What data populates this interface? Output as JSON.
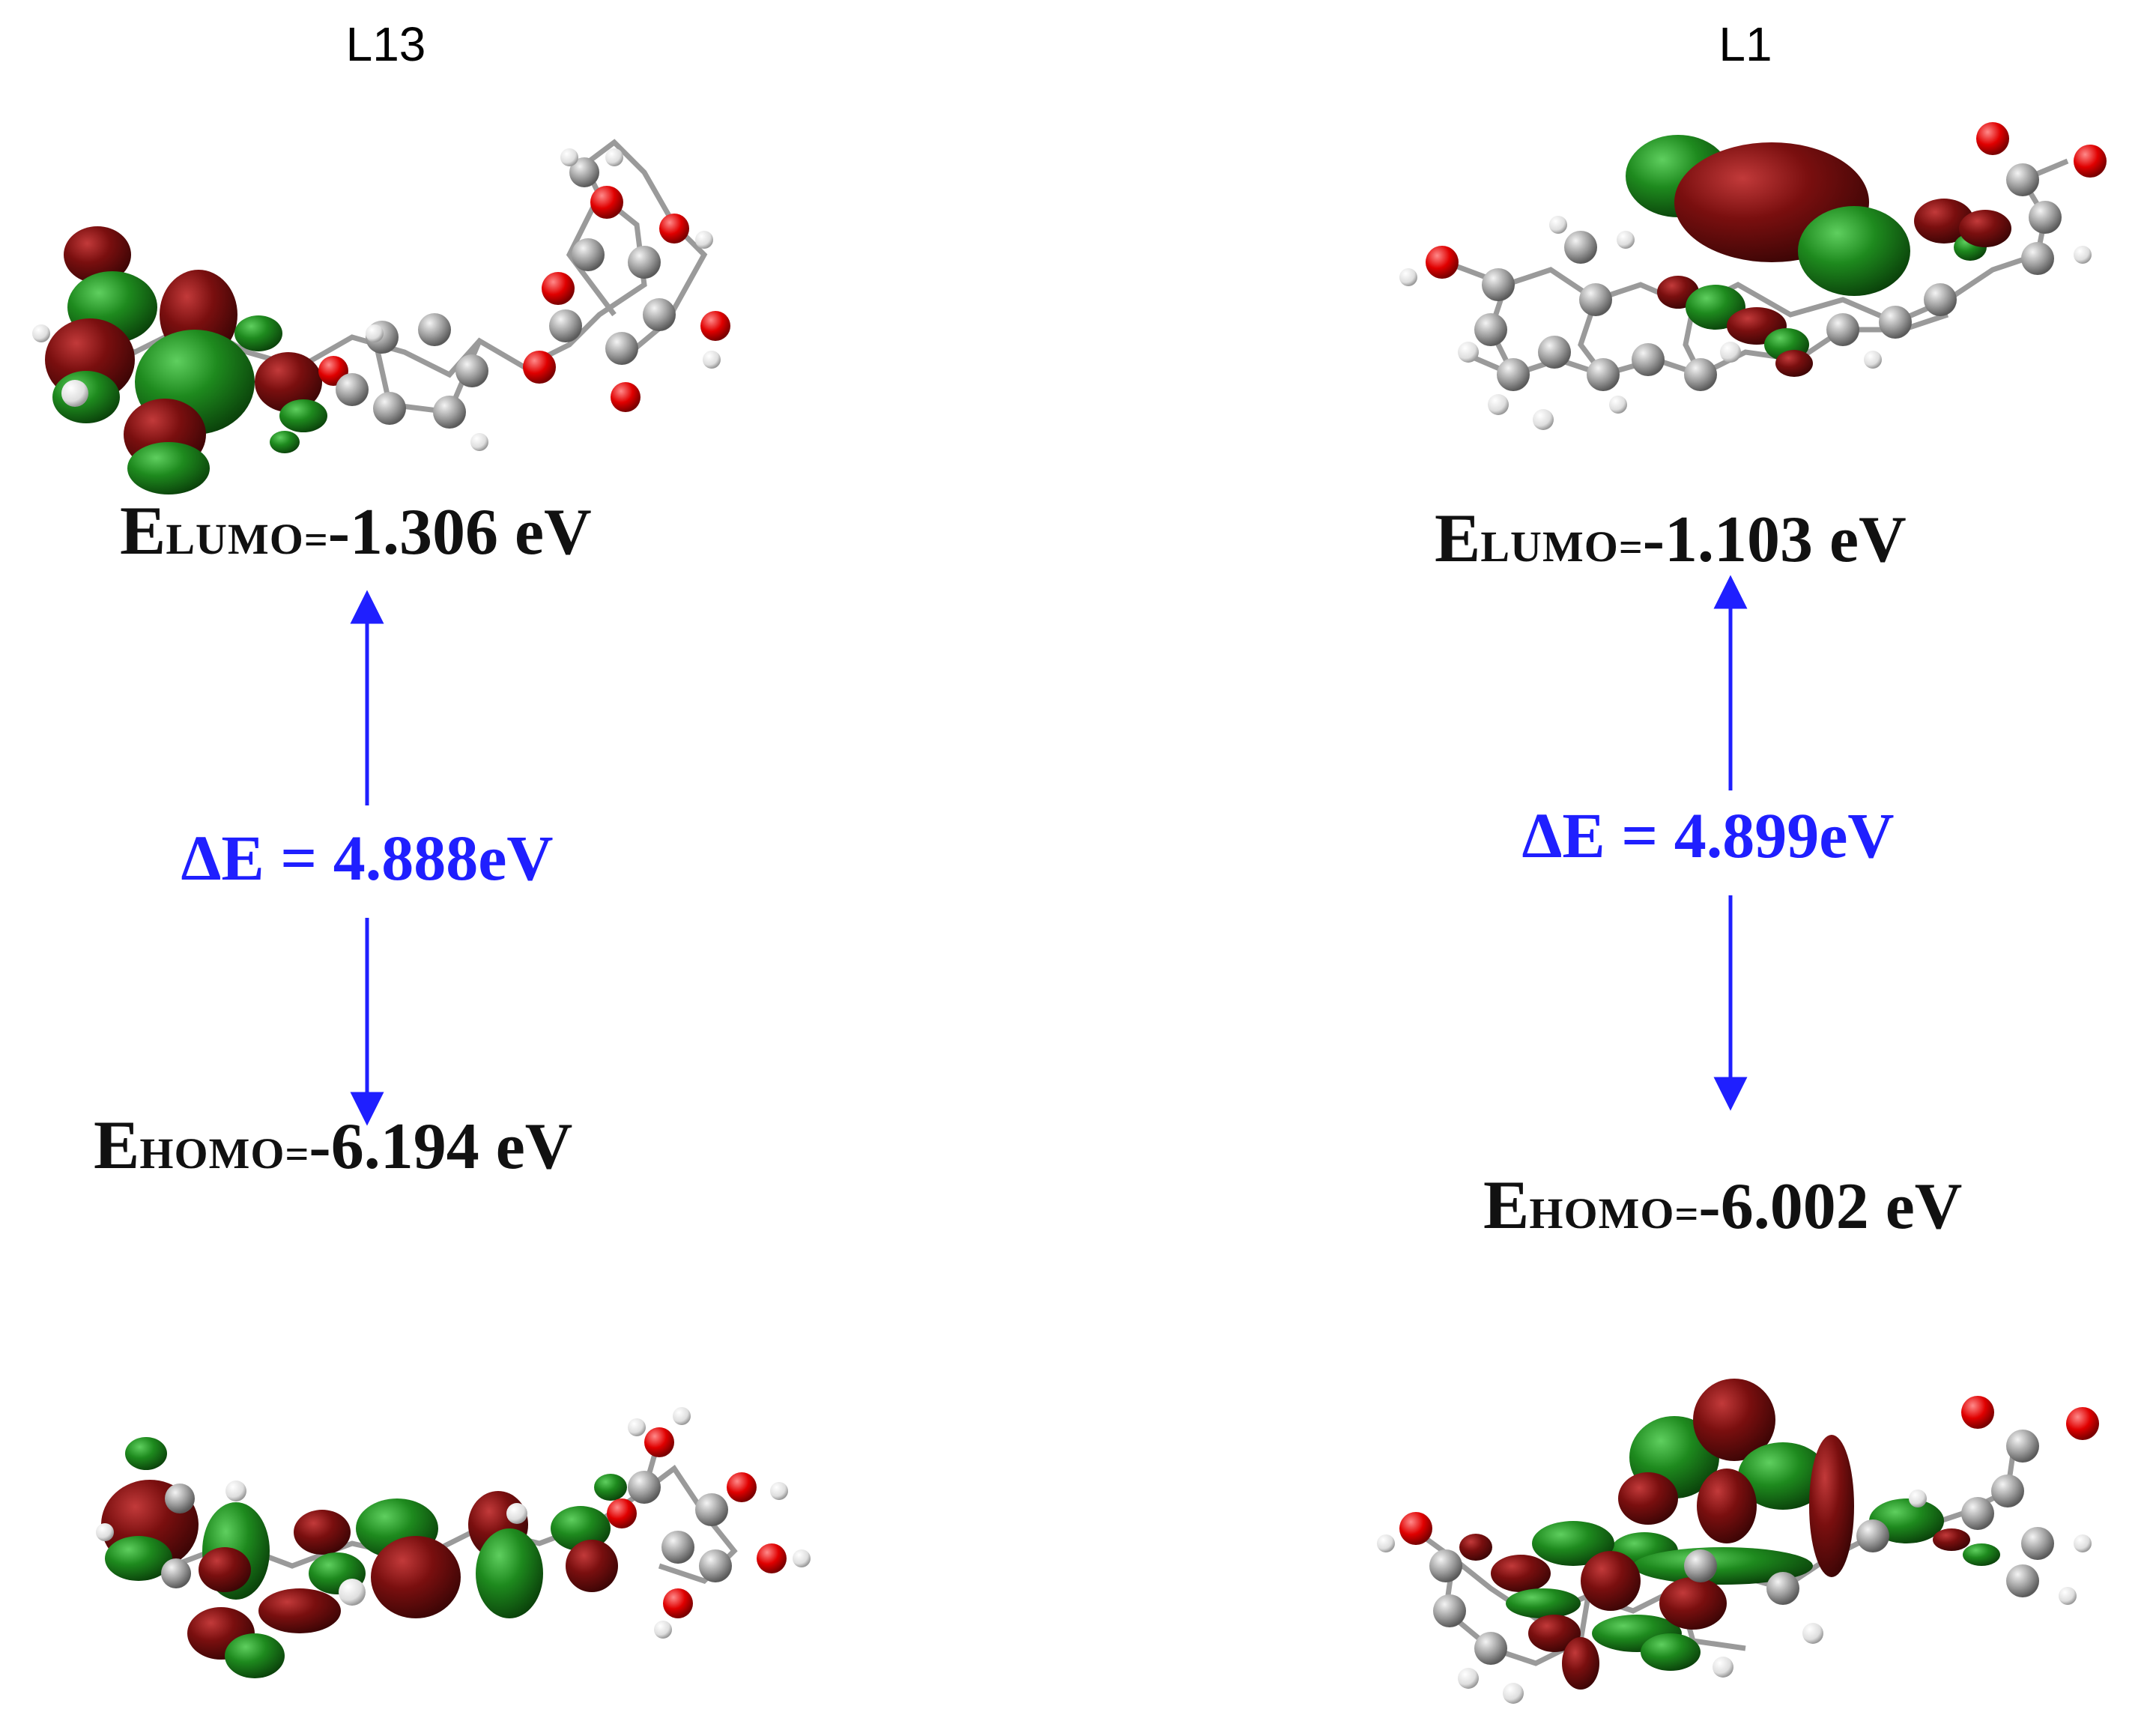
{
  "panels": [
    {
      "title": "L13",
      "lumo": {
        "symbol": "E",
        "subscript": "LUMO",
        "equals": "=",
        "value": "-1.306 eV"
      },
      "gap": "ΔE = 4.888eV",
      "homo": {
        "symbol": "E",
        "subscript": "HOMO",
        "equals": "=",
        "value": "-6.194 eV"
      }
    },
    {
      "title": "L1",
      "lumo": {
        "symbol": "E",
        "subscript": "LUMO",
        "equals": "=",
        "value": "-1.103 eV"
      },
      "gap": "ΔE = 4.899eV",
      "homo": {
        "symbol": "E",
        "subscript": "HOMO",
        "equals": "=",
        "value": "-6.002 eV"
      }
    }
  ],
  "colors": {
    "arrow": "#1f1fff",
    "orbital_positive": "#1e7a1e",
    "orbital_negative": "#7a0f0f",
    "carbon": "#a9a9a9",
    "hydrogen": "#f2f2f2",
    "oxygen": "#e00000"
  },
  "icons": [
    "molecule-orbital-image",
    "double-headed-arrow"
  ]
}
